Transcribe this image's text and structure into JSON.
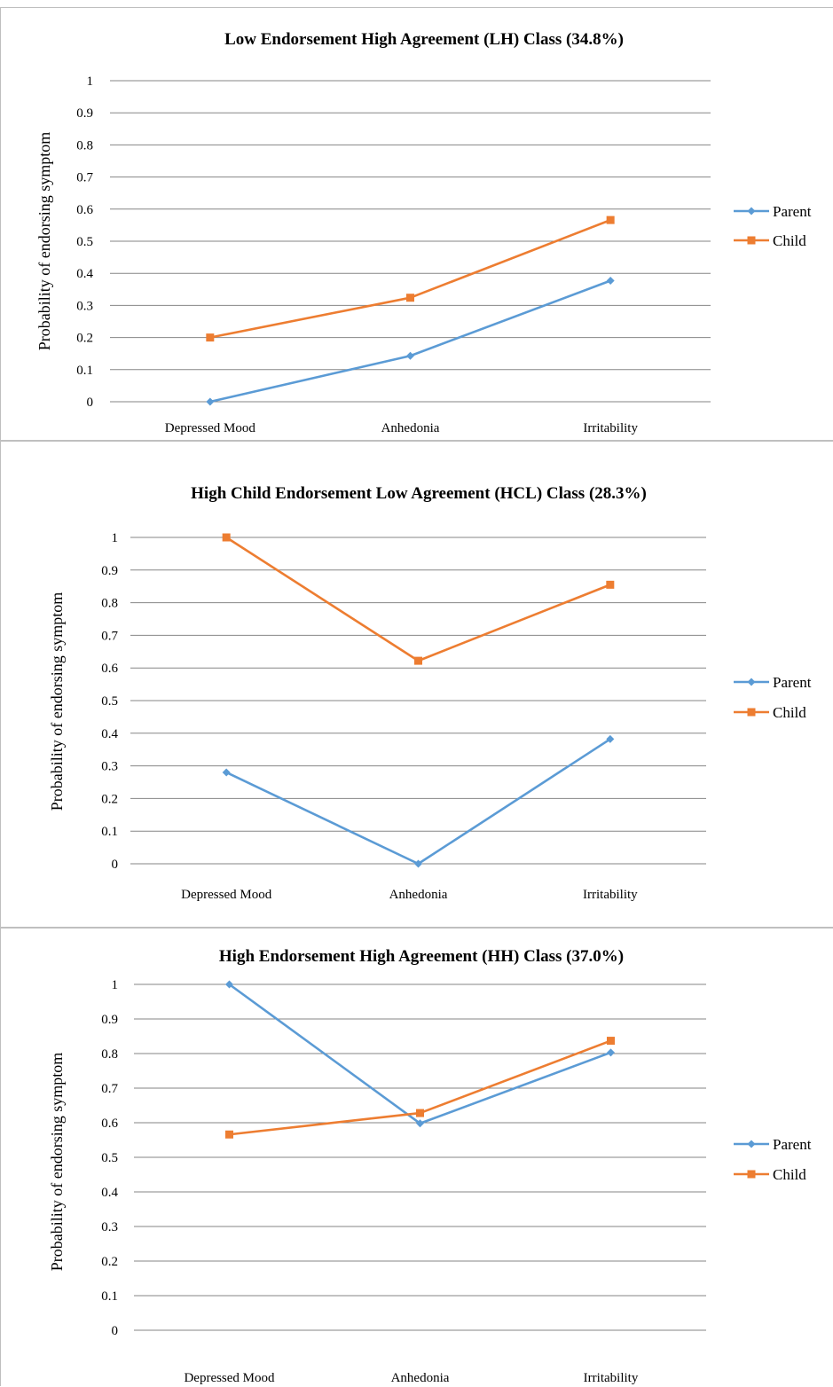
{
  "colors": {
    "parent": "#5b9bd5",
    "child": "#ed7d31",
    "grid": "#868686"
  },
  "chart_data": [
    {
      "type": "line",
      "title": "Low Endorsement High Agreement (LH) Class (34.8%)",
      "ylabel": "Probability of endorsing symptom",
      "xlabel": "",
      "categories": [
        "Depressed Mood",
        "Anhedonia",
        "Irritability"
      ],
      "ylim": [
        0,
        1
      ],
      "yticks": [
        "0",
        "0.1",
        "0.2",
        "0.3",
        "0.4",
        "0.5",
        "0.6",
        "0.7",
        "0.8",
        "0.9",
        "1"
      ],
      "grid": true,
      "legend": "right",
      "series": [
        {
          "name": "Parent",
          "marker": "diamond",
          "values": [
            0.0,
            0.143,
            0.377
          ]
        },
        {
          "name": "Child",
          "marker": "square",
          "values": [
            0.2,
            0.324,
            0.566
          ]
        }
      ]
    },
    {
      "type": "line",
      "title": "High Child Endorsement Low Agreement (HCL) Class  (28.3%)",
      "ylabel": "Probability of endorsing symptom",
      "xlabel": "",
      "categories": [
        "Depressed Mood",
        "Anhedonia",
        "Irritability"
      ],
      "ylim": [
        0,
        1
      ],
      "yticks": [
        "0",
        "0.1",
        "0.2",
        "0.3",
        "0.4",
        "0.5",
        "0.6",
        "0.7",
        "0.8",
        "0.9",
        "1"
      ],
      "grid": true,
      "legend": "right",
      "series": [
        {
          "name": "Parent",
          "marker": "diamond",
          "values": [
            0.28,
            0.0,
            0.382
          ]
        },
        {
          "name": "Child",
          "marker": "square",
          "values": [
            1.0,
            0.622,
            0.855
          ]
        }
      ]
    },
    {
      "type": "line",
      "title": "High Endorsement High Agreement (HH) Class (37.0%)",
      "ylabel": "Probability of endorsing symptom",
      "xlabel": "",
      "categories": [
        "Depressed Mood",
        "Anhedonia",
        "Irritability"
      ],
      "ylim": [
        0,
        1
      ],
      "yticks": [
        "0",
        "0.1",
        "0.2",
        "0.3",
        "0.4",
        "0.5",
        "0.6",
        "0.7",
        "0.8",
        "0.9",
        "1"
      ],
      "grid": true,
      "legend": "right",
      "series": [
        {
          "name": "Parent",
          "marker": "diamond",
          "values": [
            1.0,
            0.598,
            0.803
          ]
        },
        {
          "name": "Child",
          "marker": "square",
          "values": [
            0.566,
            0.628,
            0.837
          ]
        }
      ]
    }
  ]
}
